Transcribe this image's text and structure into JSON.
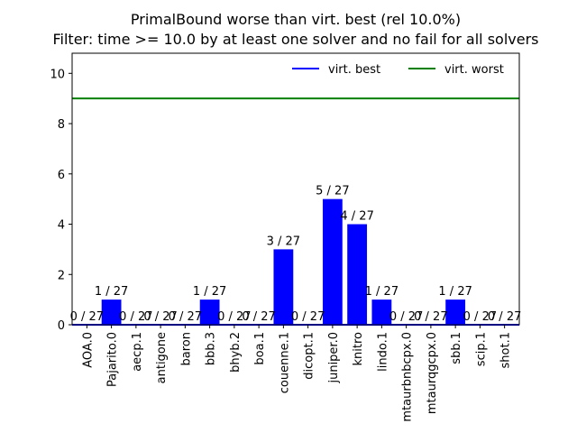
{
  "chart_data": {
    "type": "bar",
    "title_line1": "PrimalBound worse than virt. best (rel 10.0%)",
    "title_line2": "Filter: time >= 10.0 by at least one solver and no fail for all solvers",
    "categories": [
      "AOA.0",
      "Pajarito.0",
      "aecp.1",
      "antigone",
      "baron",
      "bbb.3",
      "bhyb.2",
      "boa.1",
      "couenne.1",
      "dicopt.1",
      "juniper.0",
      "knitro",
      "lindo.1",
      "mtaurbnbcpx.0",
      "mtaurqgcpx.0",
      "sbb.1",
      "scip.1",
      "shot.1"
    ],
    "values": [
      0,
      1,
      0,
      0,
      0,
      1,
      0,
      0,
      3,
      0,
      5,
      4,
      1,
      0,
      0,
      1,
      0,
      0
    ],
    "bar_labels": [
      "0 / 27",
      "1 / 27",
      "0 / 27",
      "0 / 27",
      "0 / 27",
      "1 / 27",
      "0 / 27",
      "0 / 27",
      "3 / 27",
      "0 / 27",
      "5 / 27",
      "4 / 27",
      "1 / 27",
      "0 / 27",
      "0 / 27",
      "1 / 27",
      "0 / 27",
      "0 / 27"
    ],
    "bar_color": "#0000ff",
    "ylim": [
      0,
      10.8
    ],
    "yticks": [
      0,
      2,
      4,
      6,
      8,
      10
    ],
    "hlines": [
      {
        "name": "virt. best",
        "value": 0,
        "color": "#0000ff"
      },
      {
        "name": "virt. worst",
        "value": 9,
        "color": "#008000"
      }
    ],
    "legend_position": "top-right",
    "grid": false
  }
}
